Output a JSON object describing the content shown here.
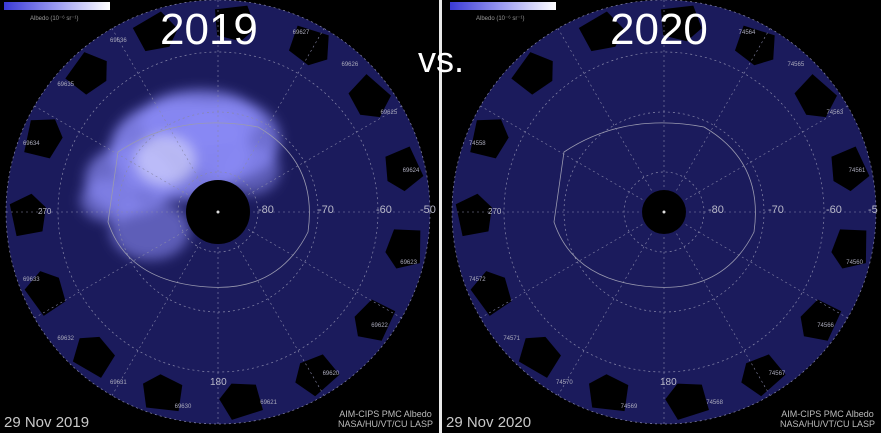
{
  "comparison_word": "vs.",
  "colors": {
    "ocean_fill": "#1b1b5c",
    "cloud": "#8a8af5",
    "background": "#000000"
  },
  "colorbar": {
    "label": "Albedo (10⁻⁶ sr⁻¹)",
    "colormap": [
      "#3a3ad6",
      "#ffffff"
    ]
  },
  "panels": [
    {
      "year": "2019",
      "date": "29 Nov 2019",
      "credit_line1": "AIM-CIPS PMC Albedo",
      "credit_line2": "NASA/HU/VT/CU LASP",
      "latitude_labels": [
        "-80",
        "-70",
        "-60",
        "-50"
      ],
      "longitude_labels": [
        "270",
        "180"
      ],
      "orbit_labels": [
        "69627",
        "69626",
        "69625",
        "69624",
        "69623",
        "69622",
        "69620",
        "69621",
        "69630",
        "69631",
        "69632",
        "69633",
        "69634",
        "69635",
        "69636"
      ],
      "clouds_present": true
    },
    {
      "year": "2020",
      "date": "29 Nov 2020",
      "credit_line1": "AIM-CIPS PMC Albedo",
      "credit_line2": "NASA/HU/VT/CU LASP",
      "latitude_labels": [
        "-80",
        "-70",
        "-60",
        "-5"
      ],
      "longitude_labels": [
        "270",
        "180"
      ],
      "orbit_labels": [
        "74564",
        "74565",
        "74563",
        "74561",
        "74560",
        "74566",
        "74567",
        "74568",
        "74569",
        "74570",
        "74571",
        "74572",
        "74558"
      ],
      "clouds_present": false
    }
  ]
}
